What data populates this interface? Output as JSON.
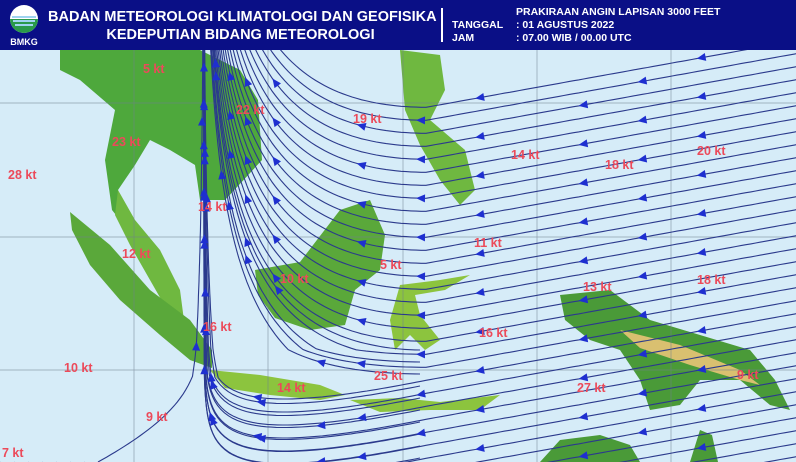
{
  "header": {
    "logo_text": "BMKG",
    "org_line1": "BADAN METEOROLOGI KLIMATOLOGI DAN GEOFISIKA",
    "org_line2": "KEDEPUTIAN BIDANG METEOROLOGI",
    "product_title": "PRAKIRAAN ANGIN LAPISAN 3000 FEET",
    "date_label": "TANGGAL",
    "date_value": ": 01 AGUSTUS 2022",
    "time_label": "JAM",
    "time_value": ": 07.00 WIB / 00.00 UTC"
  },
  "map": {
    "colors": {
      "sea": "#d6ecf8",
      "streamline": "#2b3a8c",
      "arrow": "#1e2fd0",
      "label": "#ec4a5a",
      "land_low": "#2e8b3a",
      "land_mid": "#9ccc3c",
      "land_high": "#e8d84a"
    },
    "wind_labels": [
      {
        "text": "5 kt"
      },
      {
        "text": "22 kt"
      },
      {
        "text": "19 kt"
      },
      {
        "text": "23 kt"
      },
      {
        "text": "28 kt"
      },
      {
        "text": "14 kt"
      },
      {
        "text": "12 kt"
      },
      {
        "text": "10 kt"
      },
      {
        "text": "5 kt"
      },
      {
        "text": "16 kt"
      },
      {
        "text": "10 kt"
      },
      {
        "text": "25 kt"
      },
      {
        "text": "14 kt"
      },
      {
        "text": "9 kt"
      },
      {
        "text": "7 kt"
      },
      {
        "text": "14 kt"
      },
      {
        "text": "18 kt"
      },
      {
        "text": "20 kt"
      },
      {
        "text": "11 kt"
      },
      {
        "text": "13 kt"
      },
      {
        "text": "18 kt"
      },
      {
        "text": "16 kt"
      },
      {
        "text": "27 kt"
      },
      {
        "text": "9 kt"
      }
    ]
  }
}
